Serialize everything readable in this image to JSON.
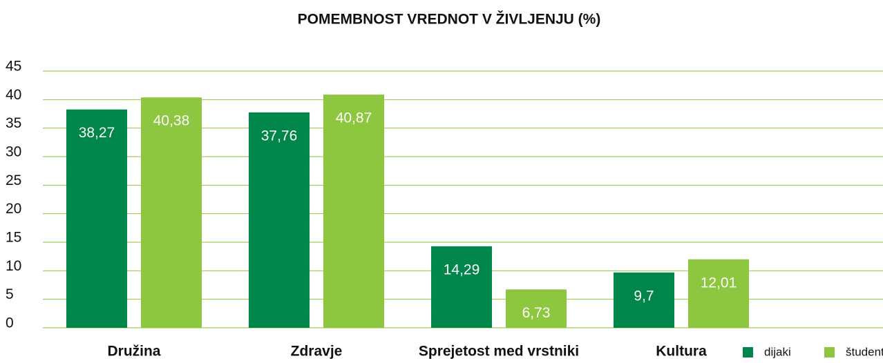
{
  "chart_data": {
    "type": "bar",
    "title": "POMEMBNOST VREDNOT V ŽIVLJENJU (%)",
    "categories": [
      "Družina",
      "Zdravje",
      "Sprejetost med vrstniki",
      "Kultura"
    ],
    "series": [
      {
        "name": "dijaki",
        "color": "#00854a",
        "values": [
          38.27,
          37.76,
          14.29,
          9.7
        ],
        "value_labels": [
          "38,27",
          "37,76",
          "14,29",
          "9,7"
        ]
      },
      {
        "name": "študenti",
        "color": "#8dc63f",
        "values": [
          40.38,
          40.87,
          6.73,
          12.01
        ],
        "value_labels": [
          "40,38",
          "40,87",
          "6,73",
          "12,01"
        ]
      }
    ],
    "ylim": [
      0,
      45
    ],
    "yticks": [
      0,
      5,
      10,
      15,
      20,
      25,
      30,
      35,
      40,
      45
    ],
    "grid": true,
    "grid_color": "#8dc63f",
    "legend": "bottom-right"
  }
}
